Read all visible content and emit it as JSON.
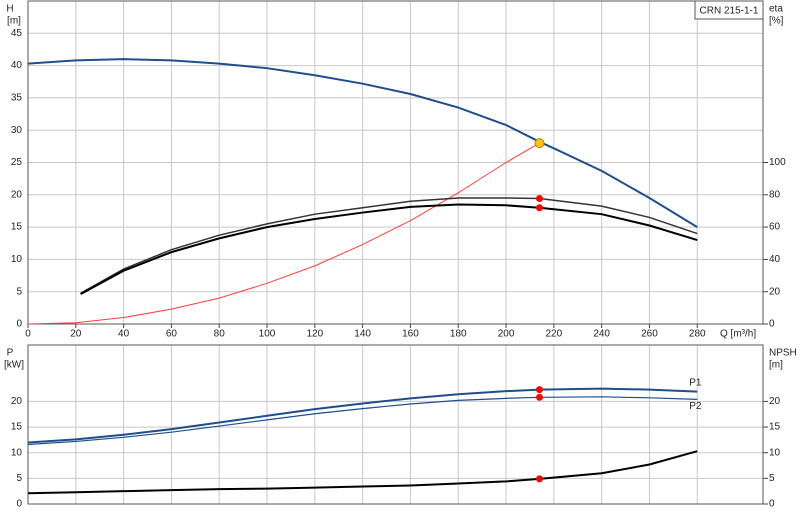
{
  "chart_data": [
    {
      "type": "line",
      "title": "CRN 215-1-1",
      "ylabel": "H",
      "yunit": "[m]",
      "y2label": "eta",
      "y2unit": "[%]",
      "xlabel": "Q [m³/h]",
      "xlim": [
        0,
        307.5
      ],
      "xticks": [
        0,
        20,
        40,
        60,
        80,
        100,
        120,
        140,
        160,
        180,
        200,
        220,
        240,
        260,
        280
      ],
      "ylim": [
        0,
        50
      ],
      "yticks": [
        0,
        5,
        10,
        15,
        20,
        25,
        30,
        35,
        40,
        45
      ],
      "y2lim": [
        0,
        200
      ],
      "y2ticks": [
        0,
        20,
        40,
        60,
        80,
        100
      ],
      "grid": true,
      "series": [
        {
          "color": "#1f4e8c",
          "width": 2,
          "x": [
            0,
            20,
            40,
            60,
            80,
            100,
            120,
            140,
            160,
            180,
            200,
            214,
            220,
            240,
            260,
            280
          ],
          "values": [
            40.3,
            40.8,
            41,
            40.8,
            40.3,
            39.6,
            38.5,
            37.2,
            35.6,
            33.5,
            30.8,
            28.2,
            27.2,
            23.7,
            19.5,
            15
          ]
        },
        {
          "color": "#ff3b3b",
          "width": 1,
          "x": [
            0,
            20,
            40,
            60,
            80,
            100,
            120,
            140,
            160,
            180,
            200,
            214
          ],
          "values": [
            0,
            0.2,
            1,
            2.3,
            4,
            6.3,
            9,
            12.3,
            16,
            20.3,
            25,
            28
          ]
        },
        {
          "color": "#333333",
          "width": 1.5,
          "axis": "y2",
          "x": [
            22,
            40,
            60,
            80,
            100,
            120,
            140,
            160,
            180,
            200,
            214,
            240,
            260,
            280
          ],
          "values": [
            19,
            34,
            46,
            55,
            62,
            68,
            72,
            76,
            78,
            78,
            77.7,
            73,
            66,
            56
          ]
        },
        {
          "color": "#000000",
          "width": 2,
          "axis": "y2",
          "x": [
            22,
            40,
            60,
            80,
            100,
            120,
            140,
            160,
            180,
            200,
            214,
            240,
            260,
            280
          ],
          "values": [
            18.5,
            33,
            44.5,
            53,
            60,
            65,
            69,
            72.5,
            74,
            73.5,
            72,
            68,
            61,
            52
          ]
        }
      ],
      "points": [
        {
          "x": 214,
          "y": 28,
          "color": "#f5c518"
        },
        {
          "x": 214,
          "y": 77.7,
          "axis": "y2",
          "color": "#ff0000"
        },
        {
          "x": 214,
          "y": 72,
          "axis": "y2",
          "color": "#ff0000"
        }
      ]
    },
    {
      "type": "line",
      "ylabel": "P",
      "yunit": "[kW]",
      "y2label": "NPSH",
      "y2unit": "[m]",
      "xlim": [
        0,
        307.5
      ],
      "ylim": [
        0,
        31
      ],
      "yticks": [
        0,
        5,
        10,
        15,
        20
      ],
      "y2lim": [
        0,
        31
      ],
      "y2ticks": [
        0,
        5,
        10,
        15,
        20
      ],
      "grid": true,
      "series": [
        {
          "name": "P1",
          "color": "#1f4e8c",
          "width": 2,
          "x": [
            0,
            20,
            40,
            60,
            80,
            100,
            120,
            140,
            160,
            180,
            200,
            214,
            240,
            260,
            280
          ],
          "values": [
            12,
            12.6,
            13.5,
            14.6,
            15.9,
            17.2,
            18.5,
            19.6,
            20.6,
            21.4,
            22,
            22.3,
            22.5,
            22.3,
            21.9
          ]
        },
        {
          "name": "P2",
          "color": "#1f4e8c",
          "width": 1.2,
          "x": [
            0,
            20,
            40,
            60,
            80,
            100,
            120,
            140,
            160,
            180,
            200,
            214,
            240,
            260,
            280
          ],
          "values": [
            11.6,
            12.2,
            13,
            14,
            15.2,
            16.4,
            17.6,
            18.6,
            19.5,
            20.2,
            20.6,
            20.8,
            20.9,
            20.7,
            20.4
          ]
        },
        {
          "color": "#000000",
          "width": 2,
          "axis": "y2",
          "x": [
            0,
            20,
            40,
            60,
            80,
            100,
            120,
            140,
            160,
            180,
            200,
            214,
            240,
            260,
            280
          ],
          "values": [
            2.1,
            2.3,
            2.5,
            2.7,
            2.9,
            3,
            3.2,
            3.4,
            3.6,
            4,
            4.4,
            4.9,
            6,
            7.7,
            10.3
          ]
        }
      ],
      "points": [
        {
          "x": 214,
          "y": 22.3,
          "color": "#ff0000"
        },
        {
          "x": 214,
          "y": 20.8,
          "color": "#ff0000"
        },
        {
          "x": 214,
          "y": 4.9,
          "axis": "y2",
          "color": "#ff0000"
        }
      ]
    }
  ]
}
